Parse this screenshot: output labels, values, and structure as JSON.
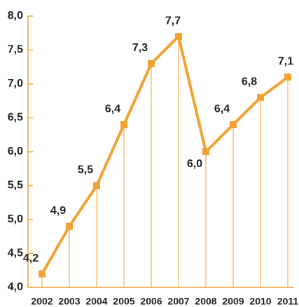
{
  "chart_data": {
    "type": "line",
    "categories": [
      "2002",
      "2003",
      "2004",
      "2005",
      "2006",
      "2007",
      "2008",
      "2009",
      "2010",
      "2011"
    ],
    "series": [
      {
        "color": "#f2a230",
        "values": [
          4.2,
          4.9,
          5.5,
          6.4,
          7.3,
          7.7,
          6.0,
          6.4,
          6.8,
          7.1
        ],
        "value_labels": [
          "4,2",
          "4,9",
          "5,5",
          "6,4",
          "7,3",
          "7,7",
          "6,0",
          "6,4",
          "6,8",
          "7,1"
        ]
      }
    ],
    "ylim": [
      4,
      8
    ],
    "yticks": [
      {
        "value": 4,
        "label": "4,0"
      },
      {
        "value": 4.5,
        "label": "4,5"
      },
      {
        "value": 5,
        "label": "5,0"
      },
      {
        "value": 5.5,
        "label": "5,5"
      },
      {
        "value": 6,
        "label": "6,0"
      },
      {
        "value": 6.5,
        "label": "6,5"
      },
      {
        "value": 7,
        "label": "7,0"
      },
      {
        "value": 7.5,
        "label": "7,5"
      },
      {
        "value": 8,
        "label": "8,0"
      }
    ],
    "drop_lines": true
  }
}
